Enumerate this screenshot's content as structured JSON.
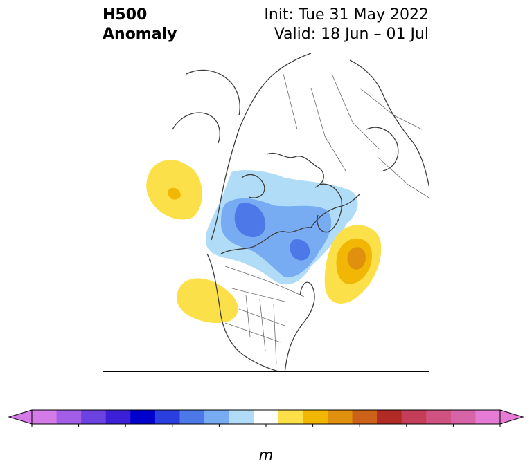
{
  "title": {
    "left_line1": "H500",
    "left_line2": "Anomaly",
    "right_line1": "Init: Tue 31 May 2022",
    "right_line2": "Valid: 18 Jun – 01 Jul"
  },
  "colorbar": {
    "unit": "m",
    "ticks": [
      "-100",
      "-80",
      "-60",
      "-40",
      "-20",
      "0",
      "20",
      "40",
      "60",
      "80",
      "100"
    ],
    "levels": [
      -100,
      -90,
      -80,
      -70,
      -60,
      -50,
      -40,
      -30,
      -20,
      -10,
      10,
      20,
      30,
      40,
      50,
      60,
      70,
      80,
      90,
      100
    ],
    "colors": [
      "#d57be8",
      "#a25ee6",
      "#6c42e0",
      "#3c20d8",
      "#0000cd",
      "#2b3fe0",
      "#4d78e8",
      "#77abf2",
      "#b0dcf8",
      "#ffffff",
      "#fce04a",
      "#f2b705",
      "#e0900f",
      "#cc621a",
      "#b22a26",
      "#c43e5a",
      "#cf5280",
      "#d864a8",
      "#e57bd5"
    ]
  },
  "map": {
    "projection": "north-polar-stereographic",
    "anomaly_features": [
      {
        "name": "northeast-pacific-positive",
        "value_m": 20,
        "color": "#fce04a"
      },
      {
        "name": "northeast-pacific-positive-core",
        "value_m": 30,
        "color": "#f2b705"
      },
      {
        "name": "arctic-negative",
        "value_m": -20,
        "color": "#b0dcf8"
      },
      {
        "name": "arctic-negative-mid",
        "value_m": -30,
        "color": "#77abf2"
      },
      {
        "name": "arctic-negative-core",
        "value_m": -40,
        "color": "#4d78e8"
      },
      {
        "name": "north-atlantic-positive",
        "value_m": 20,
        "color": "#fce04a"
      },
      {
        "name": "north-atlantic-positive-mid",
        "value_m": 30,
        "color": "#f2b705"
      },
      {
        "name": "north-atlantic-positive-core",
        "value_m": 40,
        "color": "#e0900f"
      },
      {
        "name": "western-us-positive",
        "value_m": 20,
        "color": "#fce04a"
      }
    ]
  }
}
